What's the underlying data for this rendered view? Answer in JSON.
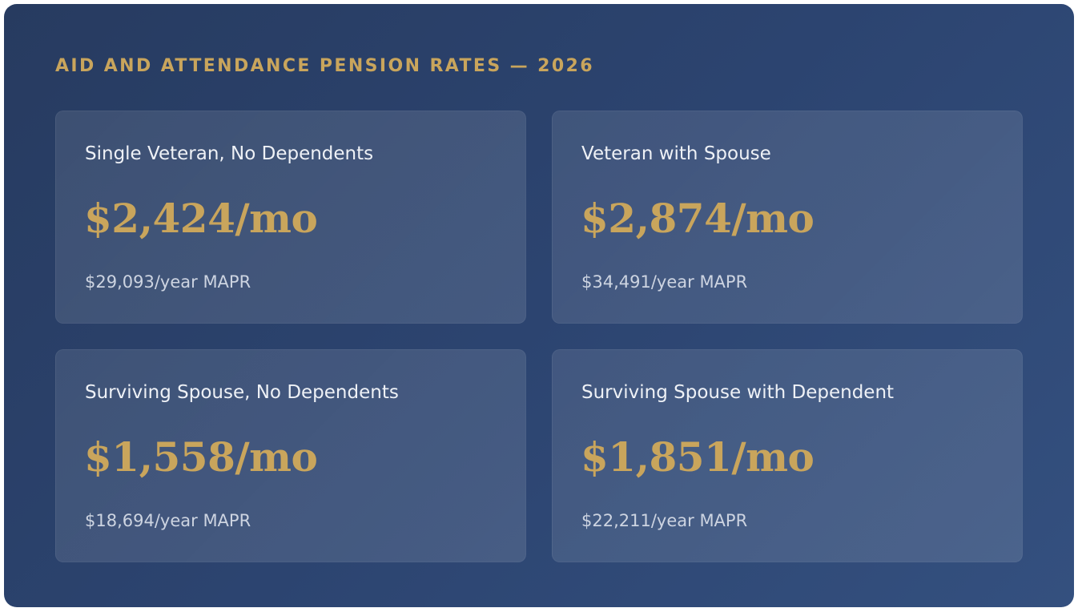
{
  "heading": "AID AND ATTENDANCE PENSION RATES — 2026",
  "colors": {
    "accent": "#c9a55c",
    "background": "#2c4470",
    "card_label": "#eef1f6",
    "card_subtext": "#cdd4e1"
  },
  "rates": [
    {
      "label": "Single Veteran, No Dependents",
      "monthly": "$2,424/mo",
      "annual": "$29,093/year MAPR"
    },
    {
      "label": "Veteran with Spouse",
      "monthly": "$2,874/mo",
      "annual": "$34,491/year MAPR"
    },
    {
      "label": "Surviving Spouse, No Dependents",
      "monthly": "$1,558/mo",
      "annual": "$18,694/year MAPR"
    },
    {
      "label": "Surviving Spouse with Dependent",
      "monthly": "$1,851/mo",
      "annual": "$22,211/year MAPR"
    }
  ]
}
